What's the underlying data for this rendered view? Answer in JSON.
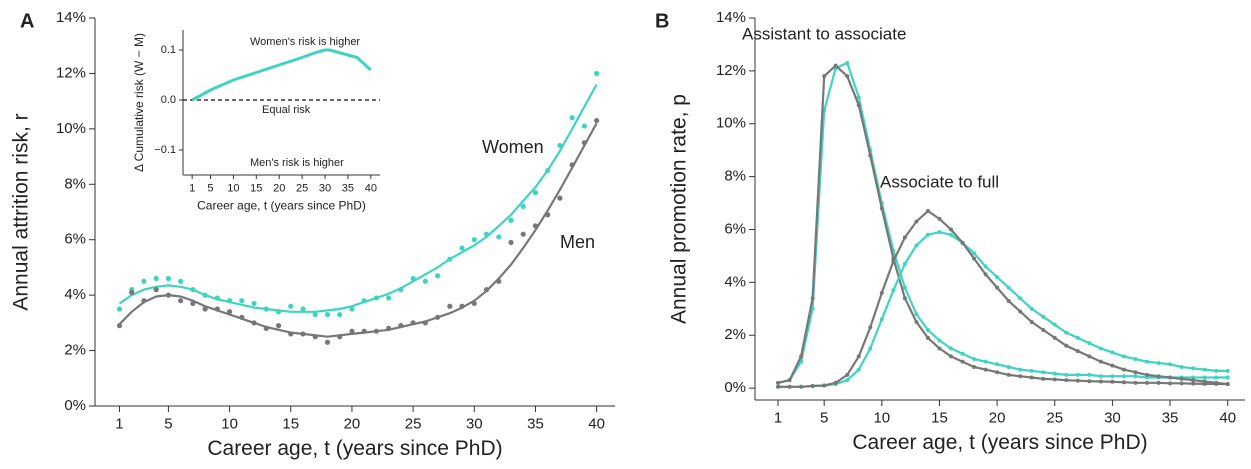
{
  "chart_data": [
    {
      "type": "line",
      "panel_label": "A",
      "xlabel": "Career age, t (years since PhD)",
      "ylabel": "Annual attrition risk, r",
      "xlim": [
        -1,
        41.5
      ],
      "ylim": [
        0,
        14
      ],
      "xticks": [
        1,
        5,
        10,
        15,
        20,
        25,
        30,
        35,
        40
      ],
      "yticks": [
        {
          "value": 0,
          "label": "0%"
        },
        {
          "value": 2,
          "label": "2%"
        },
        {
          "value": 4,
          "label": "4%"
        },
        {
          "value": 6,
          "label": "6%"
        },
        {
          "value": 8,
          "label": "8%"
        },
        {
          "value": 10,
          "label": "10%"
        },
        {
          "value": 12,
          "label": "12%"
        },
        {
          "value": 14,
          "label": "14%"
        }
      ],
      "x": [
        1,
        2,
        3,
        4,
        5,
        6,
        7,
        8,
        9,
        10,
        11,
        12,
        13,
        14,
        15,
        16,
        17,
        18,
        19,
        20,
        21,
        22,
        23,
        24,
        25,
        26,
        27,
        28,
        29,
        30,
        31,
        32,
        33,
        34,
        35,
        36,
        37,
        38,
        39,
        40
      ],
      "series": [
        {
          "name": "Women",
          "color": "#3fd4c2",
          "values": [
            3.7,
            4.0,
            4.2,
            4.3,
            4.35,
            4.3,
            4.2,
            4.0,
            3.85,
            3.75,
            3.65,
            3.55,
            3.5,
            3.45,
            3.4,
            3.4,
            3.4,
            3.45,
            3.5,
            3.6,
            3.75,
            3.9,
            4.05,
            4.25,
            4.5,
            4.75,
            5.0,
            5.3,
            5.55,
            5.8,
            6.1,
            6.5,
            6.9,
            7.4,
            7.9,
            8.5,
            9.2,
            10.0,
            10.8,
            11.6
          ],
          "points": [
            3.5,
            4.2,
            4.5,
            4.6,
            4.6,
            4.5,
            4.2,
            4.0,
            3.9,
            3.8,
            3.8,
            3.7,
            3.5,
            3.4,
            3.6,
            3.5,
            3.3,
            3.3,
            3.3,
            3.5,
            3.8,
            3.9,
            3.9,
            4.2,
            4.6,
            4.5,
            4.7,
            5.3,
            5.7,
            6.0,
            6.2,
            6.1,
            6.7,
            7.2,
            7.7,
            8.5,
            9.4,
            10.4,
            10.1,
            12.0
          ]
        },
        {
          "name": "Men",
          "color": "#777777",
          "values": [
            2.95,
            3.4,
            3.75,
            3.95,
            4.0,
            3.95,
            3.8,
            3.6,
            3.45,
            3.3,
            3.15,
            3.0,
            2.85,
            2.75,
            2.65,
            2.6,
            2.55,
            2.5,
            2.55,
            2.6,
            2.65,
            2.7,
            2.75,
            2.85,
            2.95,
            3.05,
            3.2,
            3.35,
            3.55,
            3.8,
            4.15,
            4.6,
            5.1,
            5.7,
            6.35,
            7.05,
            7.8,
            8.6,
            9.4,
            10.2
          ],
          "points": [
            2.9,
            4.1,
            3.8,
            4.2,
            4.0,
            3.8,
            3.7,
            3.5,
            3.5,
            3.4,
            3.2,
            3.0,
            2.8,
            2.9,
            2.6,
            2.6,
            2.5,
            2.3,
            2.5,
            2.7,
            2.7,
            2.7,
            2.8,
            2.9,
            3.0,
            3.0,
            3.2,
            3.6,
            3.6,
            3.7,
            4.2,
            4.5,
            5.9,
            6.2,
            6.5,
            6.9,
            7.5,
            8.7,
            9.5,
            10.3
          ]
        }
      ]
    },
    {
      "type": "line",
      "xlabel": "Career age, t (years since PhD)",
      "ylabel": "Δ Cumulative risk (W − M)",
      "xlim": [
        -1,
        42
      ],
      "ylim": [
        -0.15,
        0.14
      ],
      "xticks": [
        1,
        5,
        10,
        15,
        20,
        25,
        30,
        35,
        40
      ],
      "yticks": [
        {
          "value": -0.1,
          "label": "−0.1"
        },
        {
          "value": 0,
          "label": "0.0"
        },
        0.1
      ],
      "reference_line": 0,
      "annotations": [
        {
          "text": "Women's risk is higher",
          "color": "#3fd4c2"
        },
        {
          "text": "Equal risk",
          "color": "#111111"
        },
        {
          "text": "Men's risk is higher",
          "color": "#888888"
        }
      ],
      "x": [
        1,
        5,
        10,
        15,
        20,
        25,
        28,
        30,
        31,
        33,
        35,
        37,
        40
      ],
      "series": [
        {
          "color": "#3fd4c2",
          "values": [
            0,
            0.02,
            0.04,
            0.055,
            0.07,
            0.085,
            0.095,
            0.1,
            0.1,
            0.095,
            0.09,
            0.085,
            0.06
          ]
        }
      ]
    },
    {
      "type": "line",
      "panel_label": "B",
      "xlabel": "Career age, t (years since PhD)",
      "ylabel": "Annual promotion rate, p",
      "xlim": [
        -1,
        41.5
      ],
      "ylim": [
        -0.45,
        14
      ],
      "xticks": [
        1,
        5,
        10,
        15,
        20,
        25,
        30,
        35,
        40
      ],
      "yticks": [
        {
          "value": 0,
          "label": "0%"
        },
        {
          "value": 2,
          "label": "2%"
        },
        {
          "value": 4,
          "label": "4%"
        },
        {
          "value": 6,
          "label": "6%"
        },
        {
          "value": 8,
          "label": "8%"
        },
        {
          "value": 10,
          "label": "10%"
        },
        {
          "value": 12,
          "label": "12%"
        },
        {
          "value": 14,
          "label": "14%"
        }
      ],
      "x": [
        1,
        2,
        3,
        4,
        5,
        6,
        7,
        8,
        9,
        10,
        11,
        12,
        13,
        14,
        15,
        16,
        17,
        18,
        19,
        20,
        21,
        22,
        23,
        24,
        25,
        26,
        27,
        28,
        29,
        30,
        31,
        32,
        33,
        34,
        35,
        36,
        37,
        38,
        39,
        40
      ],
      "groups": [
        {
          "label": "Assistant to associate",
          "series": [
            {
              "color": "#3fd4c2",
              "values": [
                0.2,
                0.3,
                1.0,
                3.0,
                10.5,
                12.1,
                12.3,
                11.0,
                9.0,
                7.0,
                5.2,
                3.8,
                2.8,
                2.2,
                1.8,
                1.5,
                1.3,
                1.1,
                1.0,
                0.9,
                0.8,
                0.7,
                0.65,
                0.6,
                0.55,
                0.5,
                0.5,
                0.5,
                0.45,
                0.45,
                0.45,
                0.45,
                0.4,
                0.4,
                0.4,
                0.4,
                0.4,
                0.4,
                0.4,
                0.4
              ]
            },
            {
              "color": "#777777",
              "values": [
                0.2,
                0.3,
                1.2,
                3.4,
                11.8,
                12.2,
                11.8,
                10.7,
                8.8,
                6.8,
                4.9,
                3.4,
                2.5,
                1.9,
                1.5,
                1.2,
                1.0,
                0.8,
                0.7,
                0.6,
                0.5,
                0.45,
                0.4,
                0.35,
                0.33,
                0.3,
                0.28,
                0.26,
                0.25,
                0.24,
                0.22,
                0.2,
                0.2,
                0.2,
                0.18,
                0.18,
                0.17,
                0.16,
                0.16,
                0.15
              ]
            }
          ]
        },
        {
          "label": "Associate to full",
          "series": [
            {
              "color": "#3fd4c2",
              "values": [
                0.05,
                0.05,
                0.05,
                0.08,
                0.1,
                0.15,
                0.3,
                0.7,
                1.5,
                2.6,
                3.7,
                4.7,
                5.4,
                5.8,
                5.9,
                5.8,
                5.5,
                5.1,
                4.6,
                4.2,
                3.8,
                3.4,
                3.0,
                2.7,
                2.4,
                2.1,
                1.9,
                1.7,
                1.5,
                1.35,
                1.2,
                1.1,
                1.0,
                0.95,
                0.9,
                0.8,
                0.75,
                0.7,
                0.65,
                0.65
              ]
            },
            {
              "color": "#777777",
              "values": [
                0.05,
                0.05,
                0.05,
                0.08,
                0.1,
                0.2,
                0.5,
                1.2,
                2.3,
                3.6,
                4.8,
                5.7,
                6.3,
                6.7,
                6.4,
                6.0,
                5.5,
                4.9,
                4.3,
                3.8,
                3.3,
                2.9,
                2.5,
                2.2,
                1.9,
                1.6,
                1.4,
                1.2,
                1.0,
                0.85,
                0.7,
                0.6,
                0.5,
                0.45,
                0.4,
                0.35,
                0.3,
                0.25,
                0.2,
                0.15
              ]
            }
          ]
        }
      ]
    }
  ]
}
